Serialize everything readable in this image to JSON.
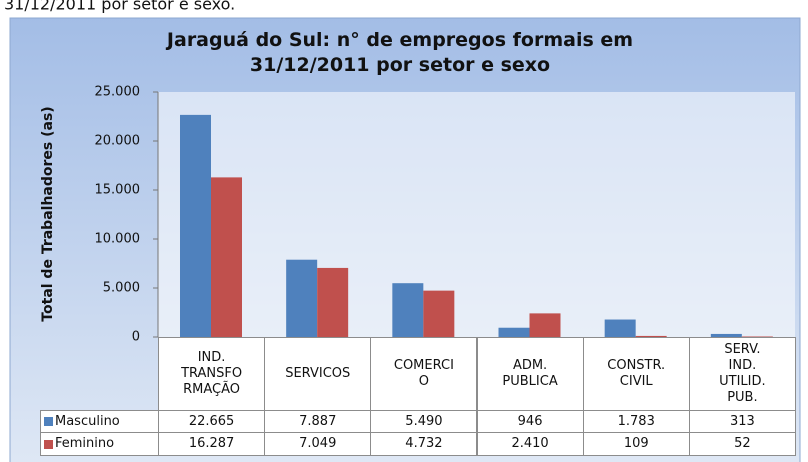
{
  "caption": "31/12/2011 por setor e sexo.",
  "chart_data": {
    "type": "bar",
    "title": "Jaraguá do Sul: n° de empregos formais em\n31/12/2011 por setor e sexo",
    "ylabel": "Total de Trabalhadores (as)",
    "categories": [
      "IND.\nTRANSFO\nRMAÇÃO",
      "SERVICOS",
      "COMERCI\nO",
      "ADM.\nPUBLICA",
      "CONSTR.\nCIVIL",
      "SERV.\nIND.\nUTILID.\nPUB."
    ],
    "series": [
      {
        "name": "Masculino",
        "color": "#4f81bd",
        "values": [
          22665,
          7887,
          5490,
          946,
          1783,
          313
        ],
        "value_labels": [
          "22.665",
          "7.887",
          "5.490",
          "946",
          "1.783",
          "313"
        ]
      },
      {
        "name": "Feminino",
        "color": "#c0504d",
        "values": [
          16287,
          7049,
          4732,
          2410,
          109,
          52
        ],
        "value_labels": [
          "16.287",
          "7.049",
          "4.732",
          "2.410",
          "109",
          "52"
        ]
      }
    ],
    "ylim": [
      0,
      25000
    ],
    "yticks": [
      0,
      {
        "value": 5000,
        "label": "5.000"
      },
      {
        "value": 10000,
        "label": "10.000"
      },
      {
        "value": 15000,
        "label": "15.000"
      },
      {
        "value": 20000,
        "label": "20.000"
      },
      {
        "value": 25000,
        "label": "25.000"
      }
    ],
    "grid": false
  }
}
